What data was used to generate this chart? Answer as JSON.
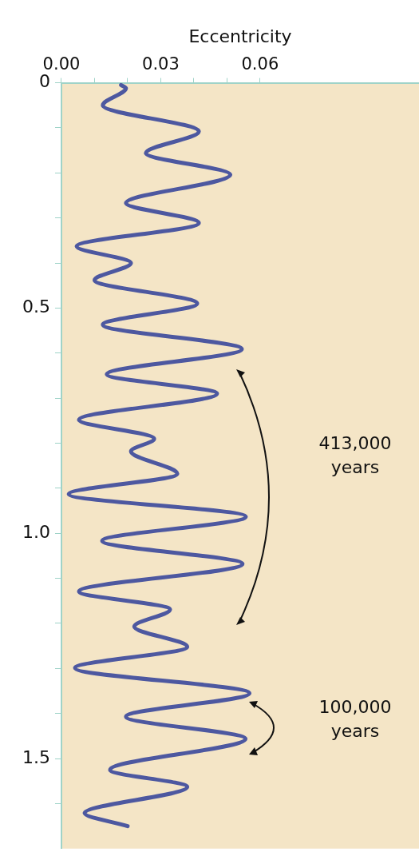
{
  "chart_data": {
    "type": "line",
    "xlabel": "Eccentricity",
    "x": [
      0.018,
      0.0195,
      0.0125,
      0.0415,
      0.0255,
      0.051,
      0.0195,
      0.0415,
      0.0046,
      0.021,
      0.01,
      0.041,
      0.0125,
      0.0545,
      0.0137,
      0.047,
      0.0053,
      0.028,
      0.021,
      0.035,
      0.0022,
      0.0557,
      0.0123,
      0.0547,
      0.0053,
      0.0328,
      0.022,
      0.038,
      0.0041,
      0.0568,
      0.0195,
      0.0556,
      0.0147,
      0.038,
      0.007,
      0.02
    ],
    "series": [
      {
        "color": "#4d58a0",
        "values": [
          0.005,
          0.012,
          0.05,
          0.108,
          0.156,
          0.204,
          0.267,
          0.311,
          0.363,
          0.4,
          0.438,
          0.49,
          0.537,
          0.591,
          0.647,
          0.69,
          0.748,
          0.79,
          0.818,
          0.868,
          0.913,
          0.963,
          1.017,
          1.068,
          1.129,
          1.169,
          1.207,
          1.252,
          1.299,
          1.355,
          1.407,
          1.456,
          1.525,
          1.563,
          1.621,
          1.65
        ]
      }
    ],
    "xlim": [
      0,
      0.108
    ],
    "xticks": [
      {
        "value": 0,
        "label": "0.00"
      },
      {
        "value": 0.01,
        "label": null
      },
      {
        "value": 0.02,
        "label": null
      },
      0.03,
      {
        "value": 0.04,
        "label": null
      },
      {
        "value": 0.05,
        "label": null
      },
      0.06
    ],
    "ylim": [
      1.7,
      0
    ],
    "yticks": [
      0,
      {
        "value": 0.1,
        "label": null
      },
      {
        "value": 0.2,
        "label": null
      },
      {
        "value": 0.3,
        "label": null
      },
      {
        "value": 0.4,
        "label": null
      },
      0.5,
      {
        "value": 0.6,
        "label": null
      },
      {
        "value": 0.7,
        "label": null
      },
      {
        "value": 0.8,
        "label": null
      },
      {
        "value": 0.9,
        "label": null
      },
      {
        "value": 1,
        "label": "1.0"
      },
      {
        "value": 1.1,
        "label": null
      },
      {
        "value": 1.2,
        "label": null
      },
      {
        "value": 1.3,
        "label": null
      },
      {
        "value": 1.4,
        "label": null
      },
      1.5,
      {
        "value": 1.6,
        "label": null
      }
    ],
    "annotations": [
      "413,000 years",
      "100,000 years"
    ],
    "grid": false,
    "legend": false,
    "marker": "none",
    "line_style": "solid"
  }
}
